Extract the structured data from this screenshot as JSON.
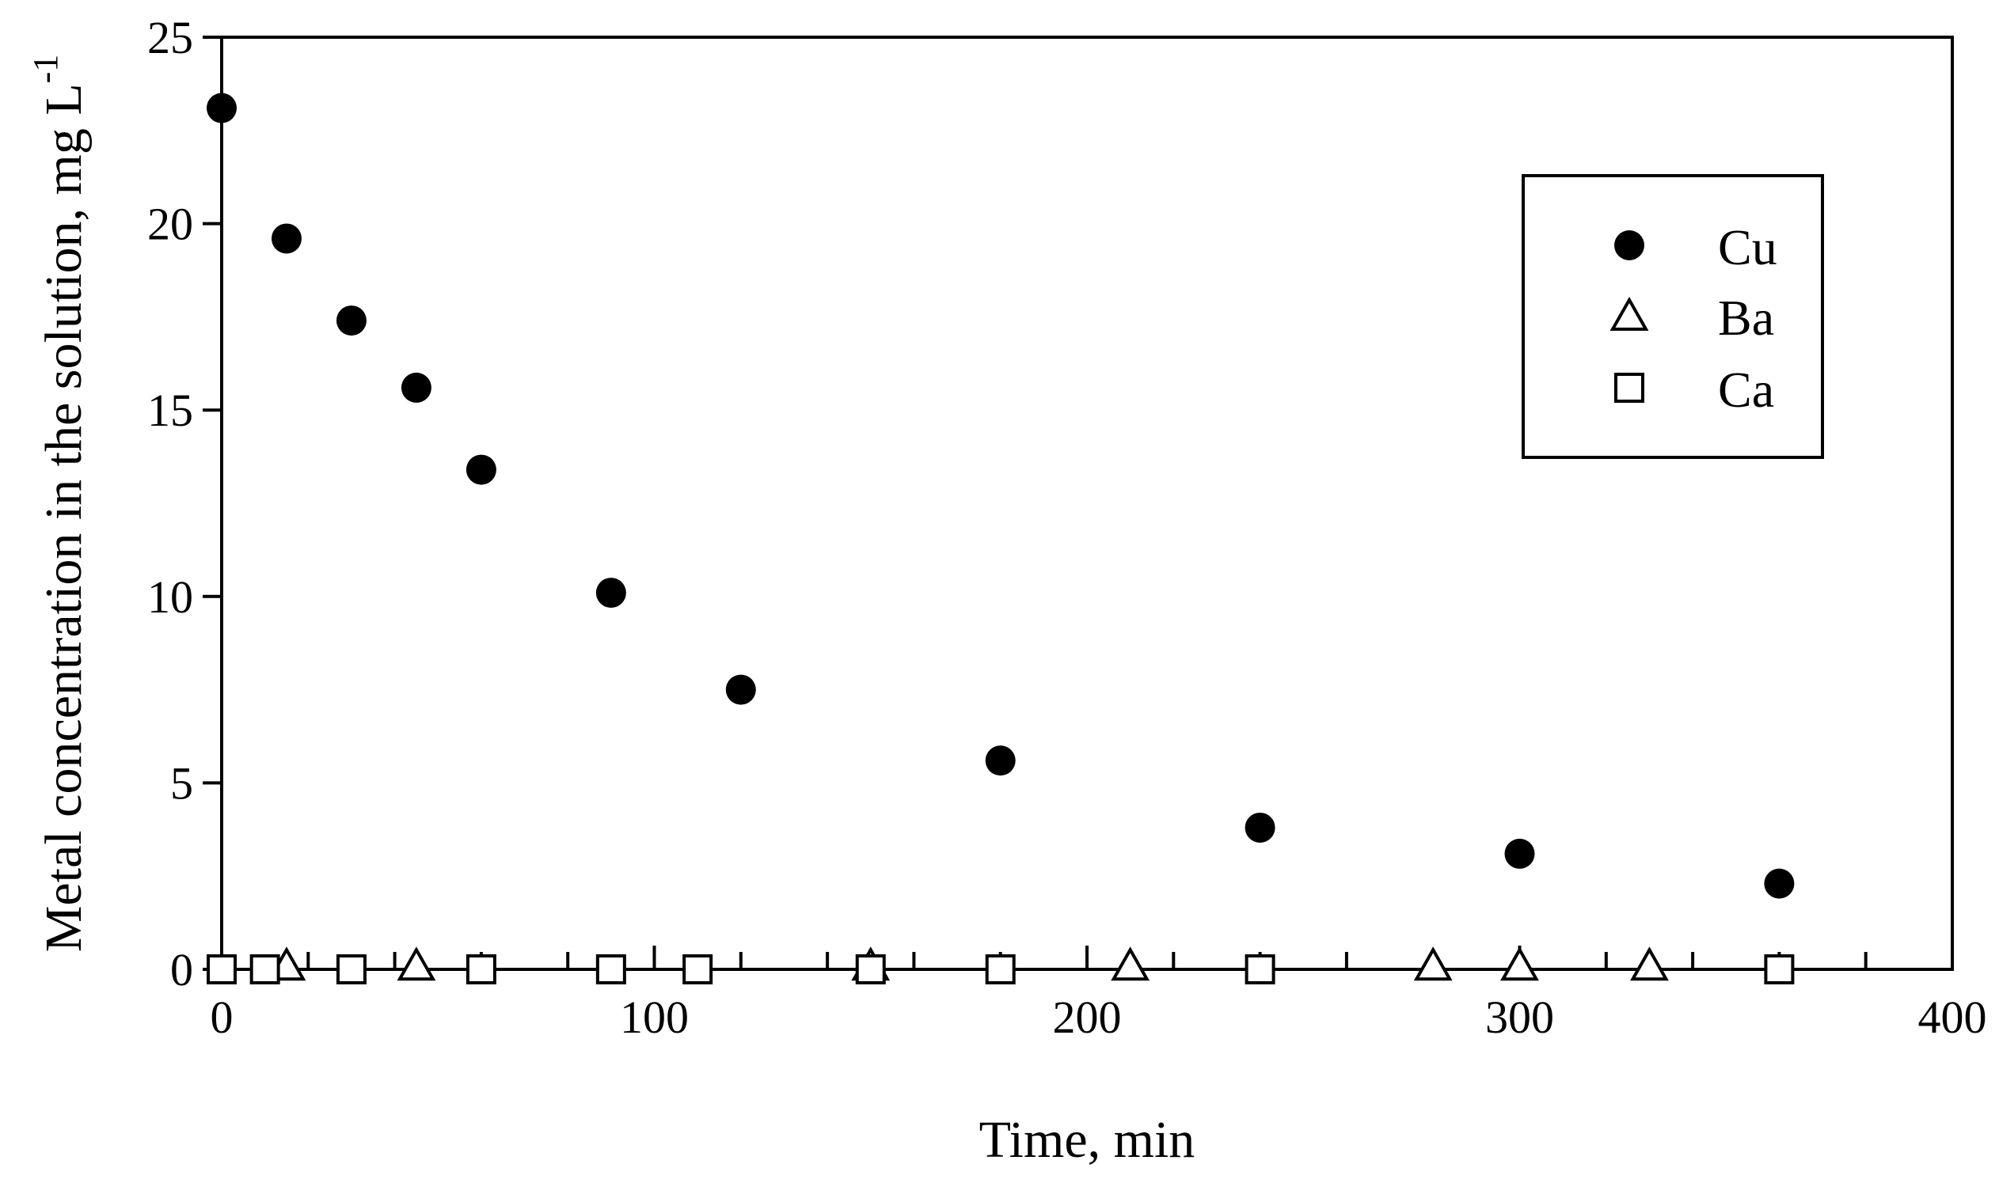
{
  "chart_data": {
    "type": "scatter",
    "xlabel": "Time, min",
    "ylabel": "Metal concentration in the solution, mg L",
    "ylabel_superscript": "-1",
    "xlim": [
      0,
      400
    ],
    "ylim": [
      0,
      25
    ],
    "xticks": [
      0,
      100,
      200,
      300,
      400
    ],
    "yticks": [
      0,
      5,
      10,
      15,
      20,
      25
    ],
    "x_minor_step": 20,
    "y_minor_step": 5,
    "grid": false,
    "legend_position": "top-right",
    "series": [
      {
        "name": "Cu",
        "marker": "filled-circle",
        "x": [
          0,
          15,
          30,
          45,
          60,
          90,
          120,
          180,
          240,
          300,
          360
        ],
        "y": [
          23.1,
          19.6,
          17.4,
          15.6,
          13.4,
          10.1,
          7.5,
          5.6,
          3.8,
          3.1,
          2.3
        ]
      },
      {
        "name": "Ba",
        "marker": "open-triangle",
        "x": [
          15,
          45,
          150,
          210,
          280,
          300,
          330
        ],
        "y": [
          0.1,
          0.1,
          0.1,
          0.1,
          0.1,
          0.1,
          0.1
        ]
      },
      {
        "name": "Ca",
        "marker": "open-square",
        "x": [
          0,
          10,
          30,
          60,
          90,
          110,
          150,
          180,
          240,
          360
        ],
        "y": [
          0,
          0,
          0,
          0,
          0,
          0,
          0,
          0,
          0,
          0
        ]
      }
    ]
  }
}
